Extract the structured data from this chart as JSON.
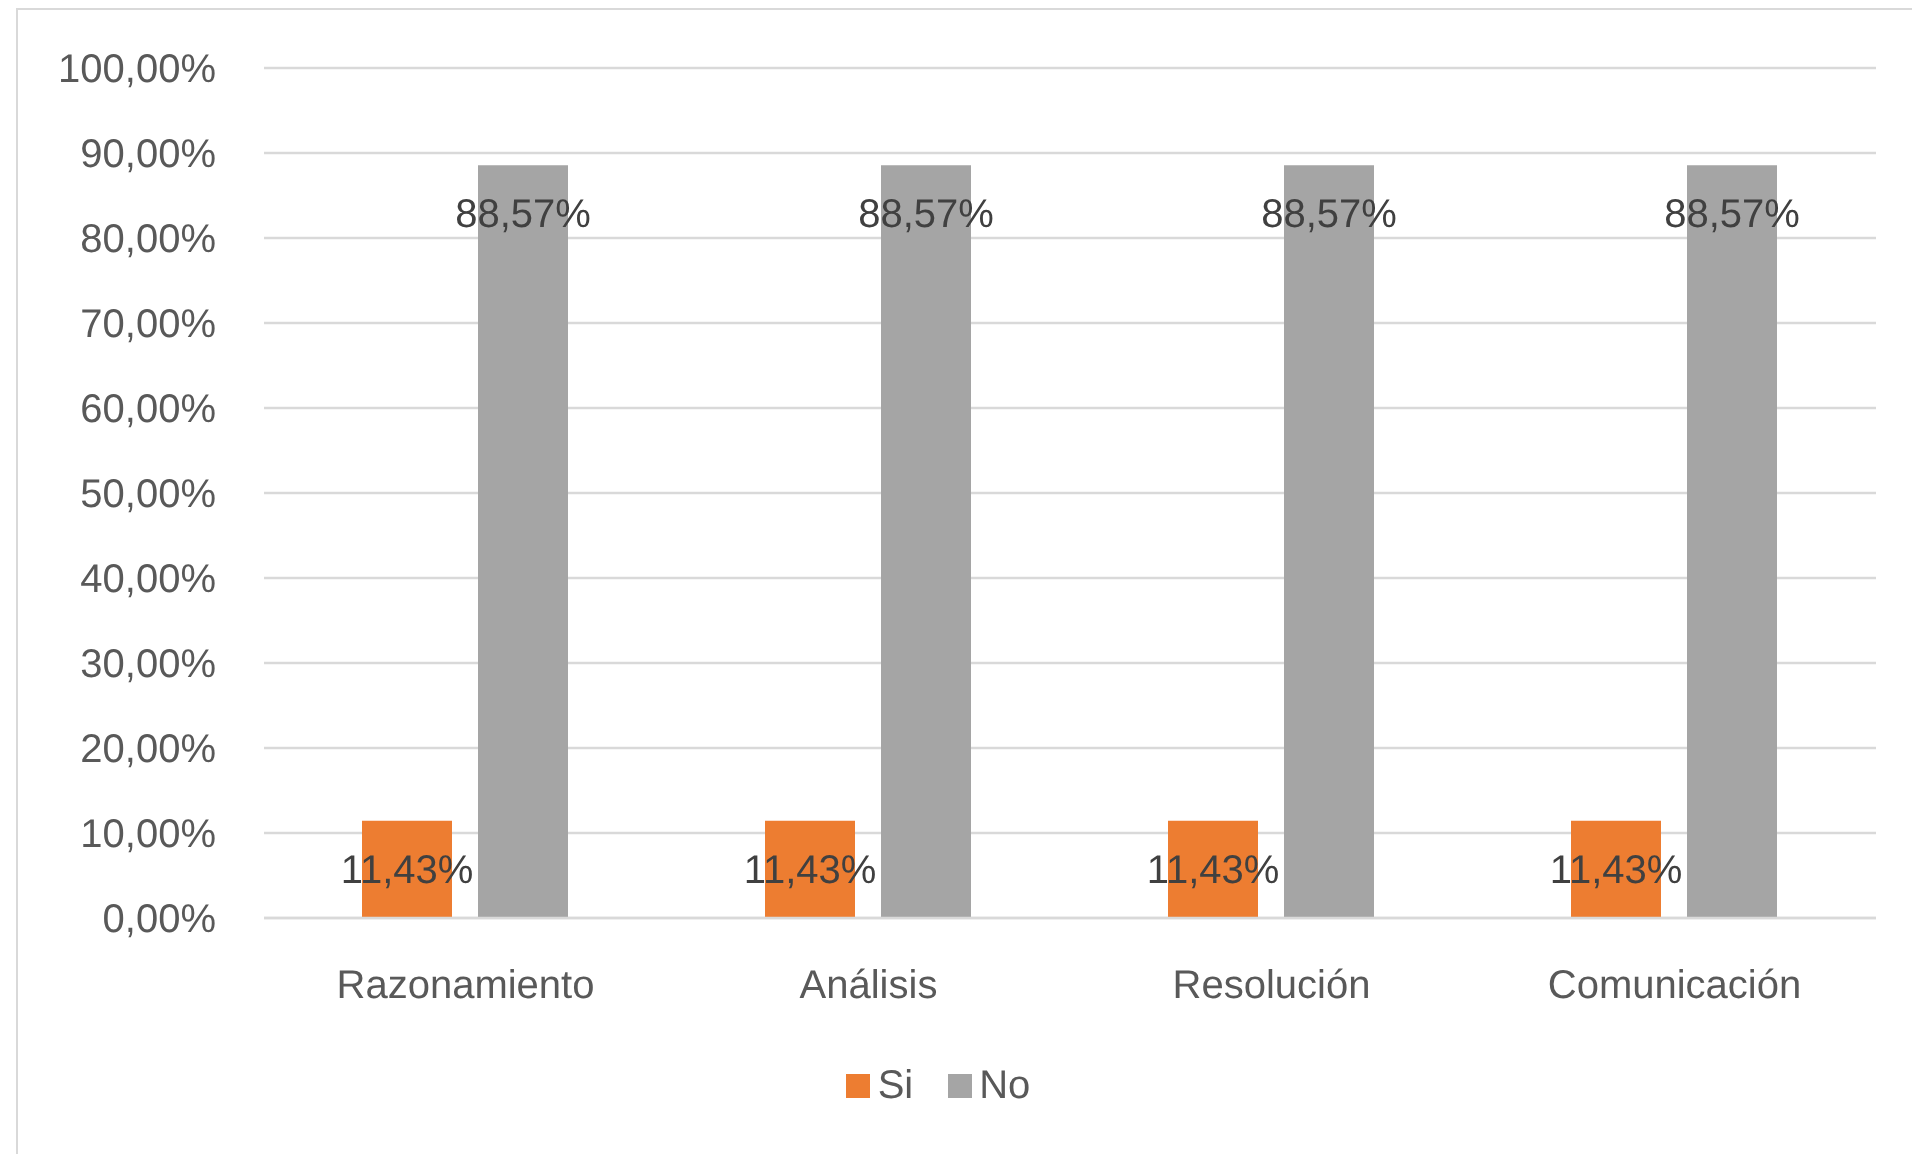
{
  "chart_data": {
    "type": "bar",
    "categories": [
      "Razonamiento",
      "Análisis",
      "Resolución",
      "Comunicación"
    ],
    "series": [
      {
        "name": "Si",
        "color": "#ed7d31",
        "values": [
          11.43,
          11.43,
          11.43,
          11.43
        ],
        "value_labels": [
          "11,43%",
          "11,43%",
          "11,43%",
          "11,43%"
        ]
      },
      {
        "name": "No",
        "color": "#a5a5a5",
        "values": [
          88.57,
          88.57,
          88.57,
          88.57
        ],
        "value_labels": [
          "88,57%",
          "88,57%",
          "88,57%",
          "88,57%"
        ]
      }
    ],
    "ylim": [
      0,
      100
    ],
    "yticks": [
      {
        "value": 0,
        "label": "0,00%"
      },
      {
        "value": 10,
        "label": "10,00%"
      },
      {
        "value": 20,
        "label": "20,00%"
      },
      {
        "value": 30,
        "label": "30,00%"
      },
      {
        "value": 40,
        "label": "40,00%"
      },
      {
        "value": 50,
        "label": "50,00%"
      },
      {
        "value": 60,
        "label": "60,00%"
      },
      {
        "value": 70,
        "label": "70,00%"
      },
      {
        "value": 80,
        "label": "80,00%"
      },
      {
        "value": 90,
        "label": "90,00%"
      },
      {
        "value": 100,
        "label": "100,00%"
      }
    ],
    "grid": "y",
    "legend": "bottom"
  }
}
